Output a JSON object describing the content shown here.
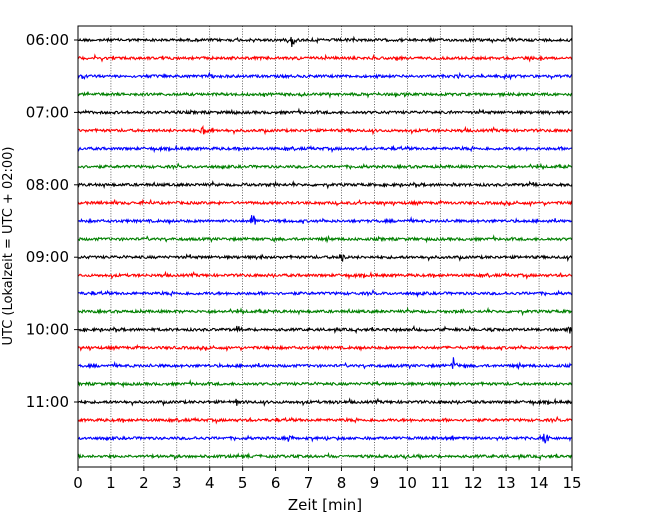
{
  "chart_data": {
    "type": "line",
    "title": "",
    "xlabel": "Zeit  [min]",
    "ylabel": "UTC (Lokalzeit = UTC + 02:00)",
    "xlim": [
      0,
      15
    ],
    "x_ticks": [
      "0",
      "1",
      "2",
      "3",
      "4",
      "5",
      "6",
      "7",
      "8",
      "9",
      "10",
      "11",
      "12",
      "13",
      "14",
      "15"
    ],
    "y_ticks": [
      "06:00",
      "07:00",
      "08:00",
      "09:00",
      "10:00",
      "11:00"
    ],
    "y_tick_rows": [
      0,
      4,
      8,
      12,
      16,
      20
    ],
    "grid": "vertical dotted",
    "trace_interval_min": 15,
    "trace_colors": [
      "#000000",
      "#ff0000",
      "#0000ff",
      "#008000"
    ],
    "traces": [
      {
        "start": "06:00",
        "events": [
          {
            "t": 6.5,
            "amp": 9
          }
        ]
      },
      {
        "start": "06:15",
        "events": []
      },
      {
        "start": "06:30",
        "events": [
          {
            "t": 4.0,
            "amp": 5
          }
        ]
      },
      {
        "start": "06:45",
        "events": []
      },
      {
        "start": "07:00",
        "events": [
          {
            "t": 4.7,
            "amp": 3
          },
          {
            "t": 11.3,
            "amp": 2
          }
        ]
      },
      {
        "start": "07:15",
        "events": [
          {
            "t": 3.8,
            "amp": 6
          }
        ]
      },
      {
        "start": "07:30",
        "events": []
      },
      {
        "start": "07:45",
        "events": []
      },
      {
        "start": "08:00",
        "events": [
          {
            "t": 5.1,
            "amp": 3
          },
          {
            "t": 11.4,
            "amp": 2
          }
        ]
      },
      {
        "start": "08:15",
        "events": []
      },
      {
        "start": "08:30",
        "events": [
          {
            "t": 5.3,
            "amp": 9
          }
        ]
      },
      {
        "start": "08:45",
        "events": []
      },
      {
        "start": "09:00",
        "events": [
          {
            "t": 8.0,
            "amp": 7
          },
          {
            "t": 5.6,
            "amp": 2
          }
        ]
      },
      {
        "start": "09:15",
        "events": []
      },
      {
        "start": "09:30",
        "events": []
      },
      {
        "start": "09:45",
        "events": [
          {
            "t": 11.7,
            "amp": 3
          }
        ]
      },
      {
        "start": "10:00",
        "events": [
          {
            "t": 14.9,
            "amp": 8
          },
          {
            "t": 4.9,
            "amp": 3
          }
        ]
      },
      {
        "start": "10:15",
        "events": []
      },
      {
        "start": "10:30",
        "events": [
          {
            "t": 11.4,
            "amp": 9
          }
        ]
      },
      {
        "start": "10:45",
        "events": [
          {
            "t": 8.9,
            "amp": 3
          }
        ]
      },
      {
        "start": "11:00",
        "events": [
          {
            "t": 4.8,
            "amp": 4
          },
          {
            "t": 7.8,
            "amp": 3
          }
        ]
      },
      {
        "start": "11:15",
        "events": []
      },
      {
        "start": "11:30",
        "events": [
          {
            "t": 6.4,
            "amp": 5
          },
          {
            "t": 14.2,
            "amp": 11
          }
        ]
      },
      {
        "start": "11:45",
        "events": []
      }
    ]
  }
}
